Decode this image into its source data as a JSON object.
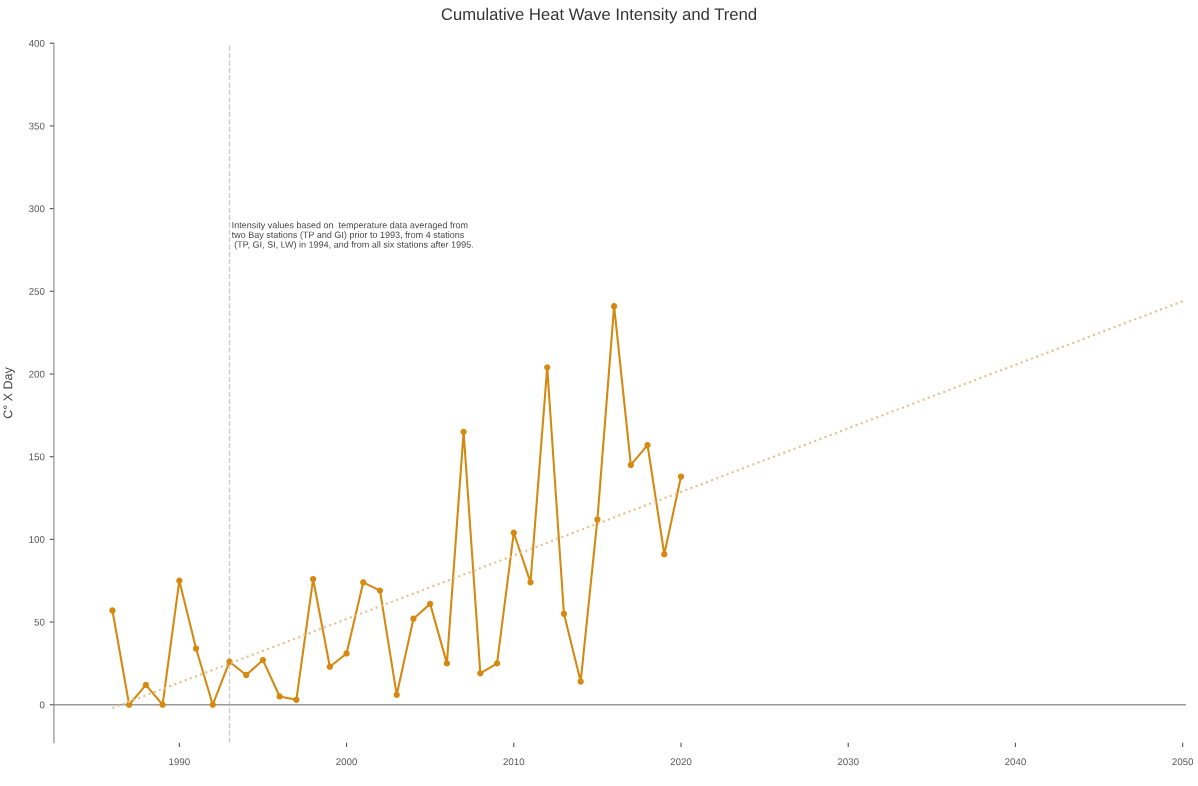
{
  "chart_data": {
    "type": "line",
    "title": "Cumulative Heat Wave Intensity and Trend",
    "ylabel": "C° X Day",
    "x": [
      1986,
      1987,
      1988,
      1989,
      1990,
      1991,
      1992,
      1993,
      1994,
      1995,
      1996,
      1997,
      1998,
      1999,
      2000,
      2001,
      2002,
      2003,
      2004,
      2005,
      2006,
      2007,
      2008,
      2009,
      2010,
      2011,
      2012,
      2013,
      2014,
      2015,
      2016,
      2017,
      2018,
      2019,
      2020
    ],
    "series": [
      {
        "color": "#d68910",
        "marker": "circle",
        "line_style": "solid",
        "values": [
          57,
          0,
          12,
          0,
          75,
          34,
          0,
          26,
          18,
          27,
          5,
          3,
          76,
          23,
          31,
          74,
          69,
          6,
          52,
          61,
          25,
          165,
          19,
          25,
          104,
          74,
          204,
          55,
          14,
          112,
          241,
          145,
          157,
          91,
          138
        ]
      },
      {
        "type": "line",
        "color": "#e5c08a",
        "marker": "none",
        "line_style": "dotted",
        "x": [
          1986,
          2050
        ],
        "values": [
          -2,
          244
        ]
      }
    ],
    "xlim": [
      1982.5,
      2050.2
    ],
    "xticks": [
      1990,
      2000,
      2010,
      2020,
      2030,
      2040,
      2050
    ],
    "ylim": [
      -23,
      400
    ],
    "yticks": [
      0,
      50,
      100,
      150,
      200,
      250,
      300,
      350,
      400
    ],
    "ref_lines": [
      {
        "axis": "x",
        "value": 1993,
        "color": "#cccccc",
        "line_style": "dashed"
      },
      {
        "axis": "y",
        "value": 0,
        "color": "#999999",
        "line_style": "solid"
      }
    ],
    "annotations": [
      "Intensity values based on  temperature data averaged from\ntwo Bay stations (TP and GI) prior to 1993, from 4 stations\n (TP, GI, SI, LW) in 1994, and from all six stations after 1995."
    ],
    "grid": false,
    "legend": false
  }
}
